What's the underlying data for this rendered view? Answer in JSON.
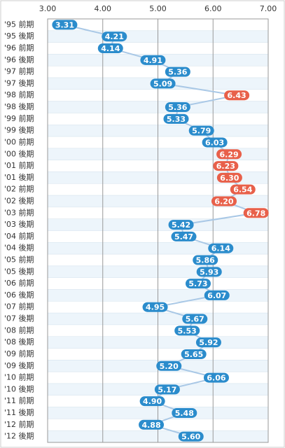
{
  "chart_data": {
    "type": "line",
    "categories": [
      "'95 前期",
      "'95 後期",
      "'96 前期",
      "'96 後期",
      "'97 前期",
      "'97 後期",
      "'98 前期",
      "'98 後期",
      "'99 前期",
      "'99 後期",
      "'00 前期",
      "'00 後期",
      "'01 前期",
      "'01 後期",
      "'02 前期",
      "'02 後期",
      "'03 前期",
      "'03 後期",
      "'04 前期",
      "'04 後期",
      "'05 前期",
      "'05 後期",
      "'06 前期",
      "'06 後期",
      "'07 前期",
      "'07 後期",
      "'08 前期",
      "'08 後期",
      "'09 前期",
      "'09 後期",
      "'10 前期",
      "'10 後期",
      "'11 前期",
      "'11 後期",
      "'12 前期",
      "'12 後期"
    ],
    "values": [
      3.31,
      4.21,
      4.14,
      4.91,
      5.36,
      5.09,
      6.43,
      5.36,
      5.33,
      5.79,
      6.03,
      6.29,
      6.23,
      6.3,
      6.54,
      6.2,
      6.78,
      5.42,
      5.47,
      6.14,
      5.86,
      5.93,
      5.73,
      6.07,
      4.95,
      5.67,
      5.53,
      5.92,
      5.65,
      5.2,
      6.06,
      5.17,
      4.9,
      5.48,
      4.88,
      5.6
    ],
    "value_labels": [
      "3.31",
      "4.21",
      "4.14",
      "4.91",
      "5.36",
      "5.09",
      "6.43",
      "5.36",
      "5.33",
      "5.79",
      "6.03",
      "6.29",
      "6.23",
      "6.30",
      "6.54",
      "6.20",
      "6.78",
      "5.42",
      "5.47",
      "6.14",
      "5.86",
      "5.93",
      "5.73",
      "6.07",
      "4.95",
      "5.67",
      "5.53",
      "5.92",
      "5.65",
      "5.20",
      "6.06",
      "5.17",
      "4.90",
      "5.48",
      "4.88",
      "5.60"
    ],
    "color": "#a9c8e6",
    "label_colors": [
      "#2b8ccc",
      "#2b8ccc",
      "#2b8ccc",
      "#2b8ccc",
      "#2b8ccc",
      "#2b8ccc",
      "#e8604a",
      "#2b8ccc",
      "#2b8ccc",
      "#2b8ccc",
      "#2b8ccc",
      "#e8604a",
      "#e8604a",
      "#e8604a",
      "#e8604a",
      "#e8604a",
      "#e8604a",
      "#2b8ccc",
      "#2b8ccc",
      "#2b8ccc",
      "#2b8ccc",
      "#2b8ccc",
      "#2b8ccc",
      "#2b8ccc",
      "#2b8ccc",
      "#2b8ccc",
      "#2b8ccc",
      "#2b8ccc",
      "#2b8ccc",
      "#2b8ccc",
      "#2b8ccc",
      "#2b8ccc",
      "#2b8ccc",
      "#2b8ccc",
      "#2b8ccc",
      "#2b8ccc"
    ],
    "xlim": [
      3,
      7
    ],
    "xticks": [
      {
        "value": 3,
        "label": "3.00"
      },
      {
        "value": 4,
        "label": "4.00"
      },
      {
        "value": 5,
        "label": "5.00"
      },
      {
        "value": 6,
        "label": "6.00"
      },
      {
        "value": 7,
        "label": "7.00"
      }
    ],
    "grid": true
  }
}
